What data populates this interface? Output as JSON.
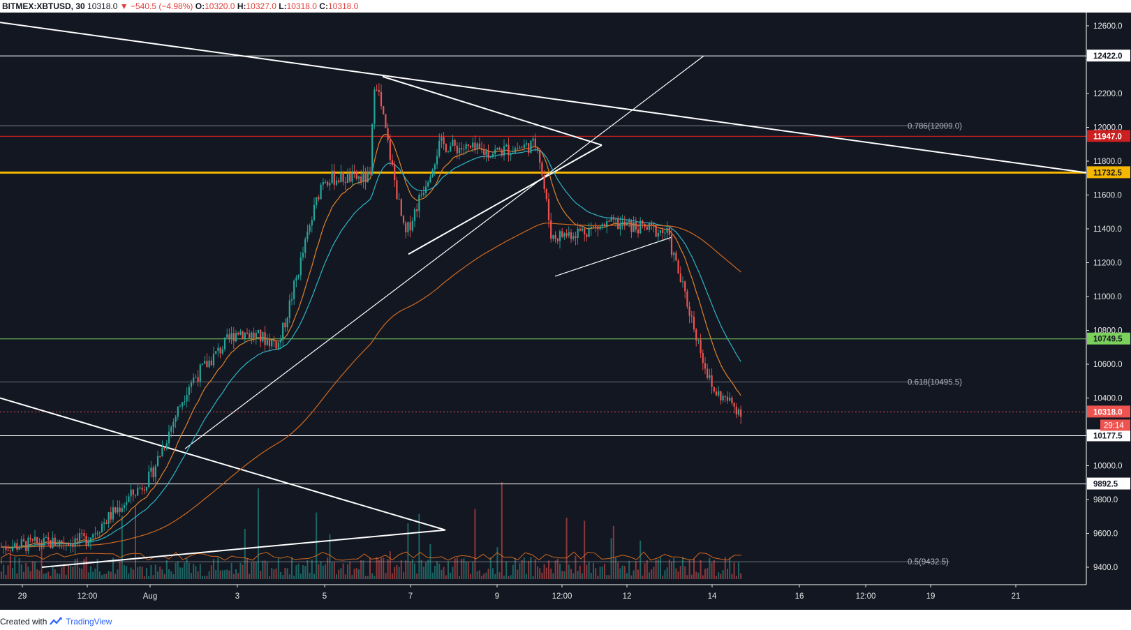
{
  "header": {
    "symbol": "BITMEX:XBTUSD, 30",
    "last": "10318.0",
    "change_arrow": "▼",
    "change": "−540.5 (−4.98%)",
    "o_label": "O:",
    "o_value": "10320.0",
    "h_label": "H:",
    "h_value": "10327.0",
    "l_label": "L:",
    "l_value": "10318.0",
    "c_label": "C:",
    "c_value": "10318.0"
  },
  "footer": {
    "created_with": "Created with",
    "brand": "TradingView",
    "brand_icon": "tradingview-logo-icon"
  },
  "colors": {
    "background": "#131722",
    "up": "#26a69a",
    "down": "#ef5350",
    "ema_fast": "#e0832a",
    "ema_slow": "#2fb5c4",
    "ma_long": "#d2691e",
    "resistance_yellow": "#f5b700",
    "resistance_red": "#cc1f1f",
    "support_green": "#7cd05c",
    "axis_line": "#ffffff"
  },
  "chart_data": {
    "type": "candlestick",
    "timeframe": "30",
    "x_axis_labels": [
      "29",
      "12:00",
      "Aug",
      "3",
      "5",
      "7",
      "9",
      "12:00",
      "12",
      "14",
      "16",
      "12:00",
      "19",
      "21"
    ],
    "ylim": [
      9400,
      12700
    ],
    "y_ticks": [
      9400,
      9600,
      9800,
      10000,
      10200,
      10400,
      10600,
      10800,
      11000,
      11200,
      11400,
      11600,
      11800,
      12000,
      12200,
      12400,
      12600
    ],
    "y_tick_labels": [
      "9400.0",
      "9600.0",
      "9800.0",
      "10000.0",
      "",
      "10400.0",
      "10600.0",
      "10800.0",
      "11000.0",
      "11200.0",
      "11400.0",
      "11600.0",
      "11800.0",
      "12000.0",
      "12200.0",
      "",
      "12600.0"
    ],
    "price_path": [
      {
        "x": "29",
        "y": 9520
      },
      {
        "x": "12:00",
        "y": 9560
      },
      {
        "x": "Aug",
        "y": 9930
      },
      {
        "x": "Aug 2",
        "y": 10480
      },
      {
        "x": "3",
        "y": 10800
      },
      {
        "x": "4",
        "y": 10720
      },
      {
        "x": "5",
        "y": 11700
      },
      {
        "x": "6",
        "y": 11700
      },
      {
        "x": "6 peak",
        "y": 12320
      },
      {
        "x": "7",
        "y": 11350
      },
      {
        "x": "8",
        "y": 11900
      },
      {
        "x": "9",
        "y": 11850
      },
      {
        "x": "10",
        "y": 11900
      },
      {
        "x": "12:00",
        "y": 11350
      },
      {
        "x": "12",
        "y": 11430
      },
      {
        "x": "13",
        "y": 11380
      },
      {
        "x": "14",
        "y": 10450
      },
      {
        "x": "14 last",
        "y": 10318
      }
    ],
    "horizontal_levels": [
      {
        "price": 12422.0,
        "label": "12422.0",
        "color": "#ffffff"
      },
      {
        "price": 11947.0,
        "label": "11947.0",
        "color": "#cc1f1f"
      },
      {
        "price": 11732.5,
        "label": "11732.5",
        "color": "#f5b700"
      },
      {
        "price": 10749.5,
        "label": "10749.5",
        "color": "#7cd05c"
      },
      {
        "price": 10318.0,
        "label": "10318.0",
        "color": "#ef5350"
      },
      {
        "price": 10177.5,
        "label": "10177.5",
        "color": "#ffffff"
      },
      {
        "price": 9892.5,
        "label": "9892.5",
        "color": "#ffffff"
      }
    ],
    "fib_levels": [
      {
        "ratio": "0.786",
        "price": 12009.0,
        "label": "0.786(12009.0)"
      },
      {
        "ratio": "0.618",
        "price": 10495.5,
        "label": "0.618(10495.5)"
      },
      {
        "ratio": "0.5",
        "price": 9432.5,
        "label": "0.5(9432.5)"
      }
    ],
    "countdown": "29:14",
    "last_price": 10318.0
  }
}
